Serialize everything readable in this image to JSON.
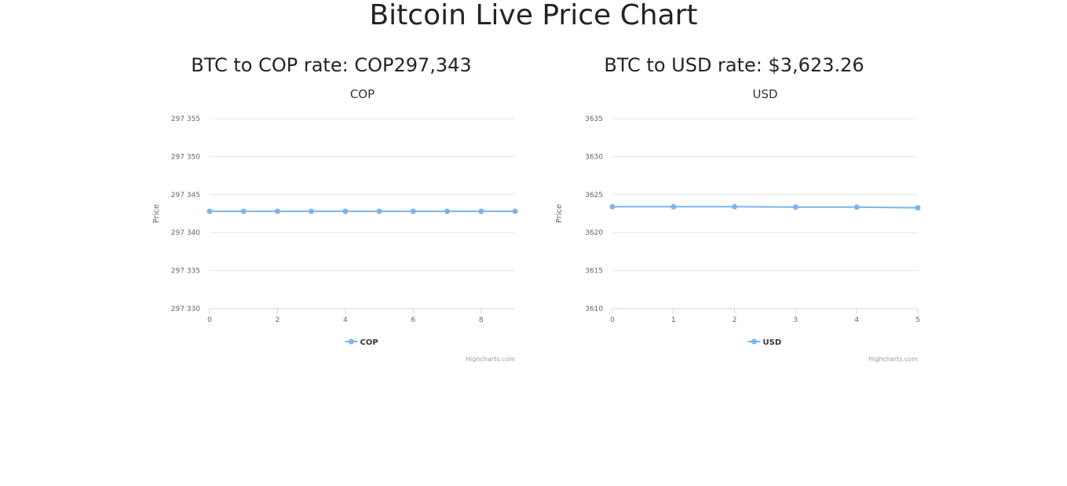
{
  "page": {
    "title": "Bitcoin Live Price Chart"
  },
  "panels": [
    {
      "heading": "BTC to COP rate: COP297,343"
    },
    {
      "heading": "BTC to USD rate: $3,623.26"
    }
  ],
  "chart_data": [
    {
      "type": "line",
      "title": "COP",
      "ylabel": "Price",
      "xlabel": "",
      "x": [
        0,
        1,
        2,
        3,
        4,
        5,
        6,
        7,
        8,
        9
      ],
      "xticks": [
        0,
        2,
        4,
        6,
        8
      ],
      "xlim": [
        0,
        9
      ],
      "ylim": [
        297330,
        297355
      ],
      "yticks": [
        297330,
        297335,
        297340,
        297345,
        297350,
        297355
      ],
      "ytick_labels": [
        "297 330",
        "297 335",
        "297 340",
        "297 345",
        "297 350",
        "297 355"
      ],
      "series": [
        {
          "name": "COP",
          "color": "#7cb5ec",
          "values": [
            297342.8,
            297342.8,
            297342.8,
            297342.8,
            297342.8,
            297342.8,
            297342.8,
            297342.8,
            297342.8,
            297342.8
          ]
        }
      ],
      "legend": "bottom-center",
      "grid": true,
      "credit": "Highcharts.com"
    },
    {
      "type": "line",
      "title": "USD",
      "ylabel": "Price",
      "xlabel": "",
      "x": [
        0,
        1,
        2,
        3,
        4,
        5
      ],
      "xticks": [
        0,
        1,
        2,
        3,
        4,
        5
      ],
      "xlim": [
        0,
        5
      ],
      "ylim": [
        3610,
        3635
      ],
      "yticks": [
        3610,
        3615,
        3620,
        3625,
        3630,
        3635
      ],
      "ytick_labels": [
        "3610",
        "3615",
        "3620",
        "3625",
        "3630",
        "3635"
      ],
      "series": [
        {
          "name": "USD",
          "color": "#7cb5ec",
          "values": [
            3623.4,
            3623.4,
            3623.4,
            3623.35,
            3623.35,
            3623.26
          ]
        }
      ],
      "legend": "bottom-center",
      "grid": true,
      "credit": "Highcharts.com"
    }
  ]
}
